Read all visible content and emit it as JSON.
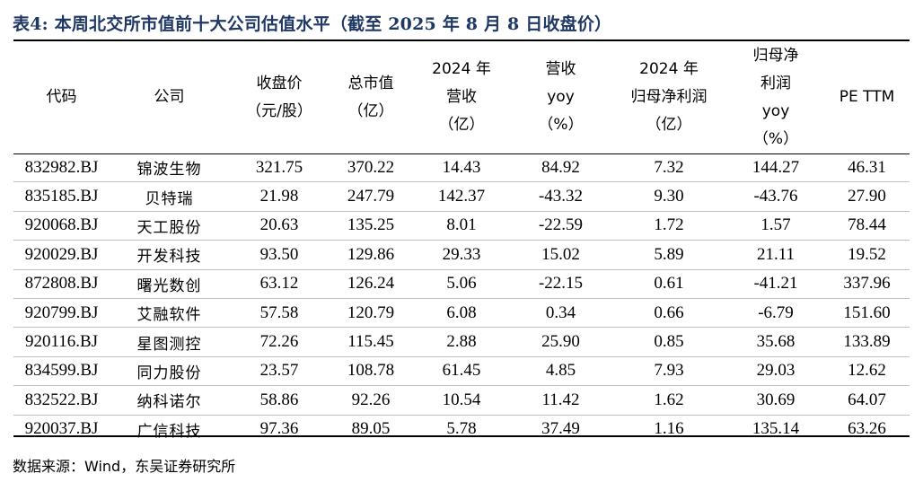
{
  "title": "表4:  本周北交所市值前十大公司估值水平（截至 2025 年 8 月 8 日收盘价）",
  "headers": [
    {
      "lines": [
        "代码"
      ]
    },
    {
      "lines": [
        "公司"
      ]
    },
    {
      "lines": [
        "收盘价",
        "（元/股）"
      ]
    },
    {
      "lines": [
        "总市值",
        "（亿）"
      ]
    },
    {
      "lines": [
        "2024 年",
        "营收",
        "（亿）"
      ]
    },
    {
      "lines": [
        "营收",
        "yoy",
        "（%）"
      ]
    },
    {
      "lines": [
        "2024 年",
        "归母净利润",
        "（亿）"
      ]
    },
    {
      "lines": [
        "归母净",
        "利润",
        "yoy",
        "（%）"
      ]
    },
    {
      "lines": [
        "PE TTM"
      ]
    }
  ],
  "rows": [
    [
      "832982.BJ",
      "锦波生物",
      "321.75",
      "370.22",
      "14.43",
      "84.92",
      "7.32",
      "144.27",
      "46.31"
    ],
    [
      "835185.BJ",
      "贝特瑞",
      "21.98",
      "247.79",
      "142.37",
      "-43.32",
      "9.30",
      "-43.76",
      "27.90"
    ],
    [
      "920068.BJ",
      "天工股份",
      "20.63",
      "135.25",
      "8.01",
      "-22.59",
      "1.72",
      "1.57",
      "78.44"
    ],
    [
      "920029.BJ",
      "开发科技",
      "93.50",
      "129.86",
      "29.33",
      "15.02",
      "5.89",
      "21.11",
      "19.52"
    ],
    [
      "872808.BJ",
      "曙光数创",
      "63.12",
      "126.24",
      "5.06",
      "-22.15",
      "0.61",
      "-41.21",
      "337.96"
    ],
    [
      "920799.BJ",
      "艾融软件",
      "57.58",
      "120.79",
      "6.08",
      "0.34",
      "0.66",
      "-6.79",
      "151.60"
    ],
    [
      "920116.BJ",
      "星图测控",
      "72.26",
      "115.45",
      "2.88",
      "25.90",
      "0.85",
      "35.68",
      "133.89"
    ],
    [
      "834599.BJ",
      "同力股份",
      "23.57",
      "108.78",
      "61.45",
      "4.85",
      "7.93",
      "29.03",
      "12.62"
    ],
    [
      "832522.BJ",
      "纳科诺尔",
      "58.86",
      "92.26",
      "10.54",
      "11.42",
      "1.62",
      "30.69",
      "64.07"
    ],
    [
      "920037.BJ",
      "广信科技",
      "97.36",
      "89.05",
      "5.78",
      "37.49",
      "1.16",
      "135.14",
      "63.26"
    ]
  ],
  "source": "数据来源：Wind，东吴证券研究所",
  "colors": {
    "title": "#1f3864",
    "rule": "#000000",
    "row_separator": "#bfbfbf"
  }
}
